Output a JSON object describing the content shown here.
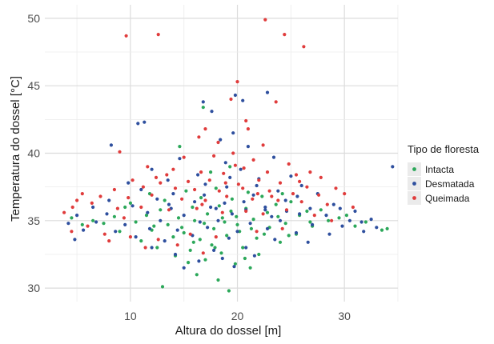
{
  "chart_data": {
    "type": "scatter",
    "xlabel": "Altura do dossel [m]",
    "ylabel": "Temperatura do dossel [°C]",
    "xlim": [
      2,
      35
    ],
    "ylim": [
      29,
      51
    ],
    "x_ticks": [
      10,
      20,
      30
    ],
    "y_ticks": [
      30,
      35,
      40,
      45,
      50
    ],
    "x_tick_labels": [
      "10",
      "20",
      "30"
    ],
    "y_tick_labels": [
      "30",
      "35",
      "40",
      "45",
      "50"
    ],
    "grid": true,
    "legend": {
      "title": "Tipo de floresta",
      "position": "right"
    },
    "series": [
      {
        "name": "Intacta",
        "color": "#2ca85a",
        "points": [
          [
            16.8,
            43.4
          ],
          [
            14.6,
            40.5
          ],
          [
            19.3,
            39.0
          ],
          [
            17.5,
            38.6
          ],
          [
            13.0,
            30.1
          ],
          [
            19.2,
            29.8
          ],
          [
            18.2,
            30.6
          ],
          [
            16.2,
            31.0
          ],
          [
            15.4,
            31.9
          ],
          [
            21.2,
            31.5
          ],
          [
            14.2,
            32.4
          ],
          [
            17.0,
            32.1
          ],
          [
            19.8,
            31.8
          ],
          [
            22.0,
            32.5
          ],
          [
            12.5,
            33.0
          ],
          [
            15.6,
            32.8
          ],
          [
            18.5,
            32.6
          ],
          [
            20.5,
            33.0
          ],
          [
            24.0,
            33.4
          ],
          [
            11.0,
            33.5
          ],
          [
            14.0,
            33.8
          ],
          [
            16.5,
            33.6
          ],
          [
            19.0,
            33.9
          ],
          [
            21.8,
            33.7
          ],
          [
            25.5,
            34.0
          ],
          [
            9.0,
            34.2
          ],
          [
            12.0,
            34.3
          ],
          [
            15.0,
            34.1
          ],
          [
            17.8,
            34.4
          ],
          [
            20.2,
            34.2
          ],
          [
            23.0,
            34.5
          ],
          [
            27.0,
            34.6
          ],
          [
            7.5,
            34.8
          ],
          [
            10.5,
            34.9
          ],
          [
            13.5,
            34.7
          ],
          [
            16.0,
            35.0
          ],
          [
            18.8,
            34.9
          ],
          [
            21.5,
            35.1
          ],
          [
            24.5,
            34.8
          ],
          [
            28.5,
            35.0
          ],
          [
            31.0,
            34.6
          ],
          [
            33.5,
            34.3
          ],
          [
            8.5,
            35.3
          ],
          [
            11.5,
            35.4
          ],
          [
            14.5,
            35.2
          ],
          [
            17.2,
            35.5
          ],
          [
            19.9,
            35.3
          ],
          [
            22.8,
            35.6
          ],
          [
            25.8,
            35.4
          ],
          [
            29.5,
            35.2
          ],
          [
            6.5,
            35.0
          ],
          [
            12.8,
            35.8
          ],
          [
            15.8,
            36.0
          ],
          [
            18.3,
            36.1
          ],
          [
            20.8,
            35.9
          ],
          [
            23.6,
            36.2
          ],
          [
            26.5,
            35.7
          ],
          [
            10.0,
            36.3
          ],
          [
            13.2,
            36.5
          ],
          [
            16.6,
            36.7
          ],
          [
            19.5,
            36.6
          ],
          [
            22.3,
            36.8
          ],
          [
            25.0,
            36.4
          ],
          [
            11.8,
            37.0
          ],
          [
            15.2,
            37.2
          ],
          [
            18.0,
            37.4
          ],
          [
            21.0,
            37.1
          ],
          [
            24.2,
            37.0
          ],
          [
            9.5,
            36.0
          ],
          [
            17.6,
            33.2
          ],
          [
            20.0,
            34.7
          ],
          [
            22.5,
            34.0
          ],
          [
            14.8,
            34.5
          ],
          [
            19.4,
            35.7
          ],
          [
            16.9,
            34.8
          ],
          [
            21.3,
            34.4
          ],
          [
            18.6,
            35.2
          ],
          [
            23.8,
            35.3
          ],
          [
            26.8,
            34.9
          ],
          [
            12.2,
            34.6
          ],
          [
            34.0,
            34.4
          ],
          [
            32.0,
            34.9
          ],
          [
            30.2,
            35.4
          ],
          [
            5.5,
            34.7
          ],
          [
            4.5,
            35.2
          ],
          [
            27.8,
            35.8
          ],
          [
            24.8,
            33.9
          ],
          [
            17.9,
            33.0
          ],
          [
            20.7,
            32.2
          ],
          [
            15.9,
            33.4
          ]
        ]
      },
      {
        "name": "Desmatada",
        "color": "#2e4f9e",
        "points": [
          [
            34.5,
            39.0
          ],
          [
            19.8,
            44.3
          ],
          [
            22.8,
            44.5
          ],
          [
            16.8,
            43.8
          ],
          [
            17.6,
            43.1
          ],
          [
            20.5,
            43.9
          ],
          [
            11.3,
            42.3
          ],
          [
            10.7,
            42.2
          ],
          [
            19.6,
            41.5
          ],
          [
            18.4,
            41.0
          ],
          [
            8.2,
            40.6
          ],
          [
            21.0,
            40.5
          ],
          [
            14.6,
            39.6
          ],
          [
            18.9,
            39.3
          ],
          [
            23.4,
            39.7
          ],
          [
            12.0,
            38.8
          ],
          [
            16.3,
            38.4
          ],
          [
            20.3,
            38.8
          ],
          [
            25.0,
            38.3
          ],
          [
            13.5,
            38.0
          ],
          [
            22.0,
            38.1
          ],
          [
            9.8,
            37.8
          ],
          [
            17.0,
            37.7
          ],
          [
            26.0,
            37.6
          ],
          [
            11.0,
            37.3
          ],
          [
            19.0,
            37.5
          ],
          [
            23.8,
            37.2
          ],
          [
            14.0,
            37.0
          ],
          [
            21.5,
            36.9
          ],
          [
            27.5,
            37.0
          ],
          [
            8.0,
            36.5
          ],
          [
            12.5,
            36.6
          ],
          [
            16.0,
            36.4
          ],
          [
            18.8,
            36.3
          ],
          [
            24.5,
            36.5
          ],
          [
            29.0,
            36.2
          ],
          [
            6.5,
            36.0
          ],
          [
            10.2,
            36.1
          ],
          [
            13.8,
            35.9
          ],
          [
            17.5,
            36.0
          ],
          [
            20.8,
            35.8
          ],
          [
            22.6,
            36.0
          ],
          [
            26.8,
            35.9
          ],
          [
            31.0,
            35.7
          ],
          [
            5.0,
            35.4
          ],
          [
            7.8,
            35.5
          ],
          [
            11.6,
            35.6
          ],
          [
            15.0,
            35.4
          ],
          [
            19.5,
            35.5
          ],
          [
            23.2,
            35.3
          ],
          [
            25.8,
            35.5
          ],
          [
            28.3,
            35.4
          ],
          [
            30.5,
            35.0
          ],
          [
            32.5,
            35.1
          ],
          [
            4.2,
            34.8
          ],
          [
            6.8,
            34.9
          ],
          [
            9.5,
            34.7
          ],
          [
            12.8,
            35.0
          ],
          [
            16.5,
            34.9
          ],
          [
            18.2,
            35.0
          ],
          [
            21.2,
            34.8
          ],
          [
            24.0,
            35.0
          ],
          [
            27.0,
            34.7
          ],
          [
            29.8,
            34.6
          ],
          [
            33.0,
            34.5
          ],
          [
            5.6,
            34.3
          ],
          [
            8.6,
            34.2
          ],
          [
            11.8,
            34.4
          ],
          [
            14.4,
            34.3
          ],
          [
            17.2,
            34.5
          ],
          [
            20.0,
            34.2
          ],
          [
            22.8,
            34.4
          ],
          [
            25.5,
            34.1
          ],
          [
            28.6,
            34.0
          ],
          [
            31.8,
            34.2
          ],
          [
            4.8,
            33.6
          ],
          [
            10.5,
            33.8
          ],
          [
            13.2,
            33.5
          ],
          [
            15.8,
            33.9
          ],
          [
            19.2,
            33.7
          ],
          [
            23.5,
            33.6
          ],
          [
            26.6,
            33.4
          ],
          [
            12.0,
            33.0
          ],
          [
            17.8,
            32.8
          ],
          [
            20.8,
            33.0
          ],
          [
            14.2,
            32.5
          ],
          [
            18.6,
            32.2
          ],
          [
            21.6,
            32.4
          ],
          [
            16.4,
            32.0
          ],
          [
            19.7,
            31.6
          ],
          [
            15.0,
            31.5
          ],
          [
            22.6,
            35.8
          ],
          [
            18.0,
            35.9
          ],
          [
            20.6,
            36.4
          ],
          [
            24.6,
            35.7
          ],
          [
            13.6,
            36.2
          ],
          [
            16.9,
            36.9
          ],
          [
            19.3,
            38.2
          ],
          [
            21.8,
            37.6
          ],
          [
            25.6,
            36.8
          ],
          [
            29.6,
            35.9
          ],
          [
            31.6,
            34.9
          ]
        ]
      },
      {
        "name": "Queimada",
        "color": "#e03c3c",
        "points": [
          [
            22.6,
            49.9
          ],
          [
            24.4,
            48.8
          ],
          [
            26.2,
            47.9
          ],
          [
            9.6,
            48.7
          ],
          [
            12.6,
            48.8
          ],
          [
            20.0,
            45.3
          ],
          [
            19.4,
            44.0
          ],
          [
            23.6,
            43.8
          ],
          [
            21.0,
            41.8
          ],
          [
            18.2,
            40.8
          ],
          [
            16.4,
            41.2
          ],
          [
            9.0,
            40.1
          ],
          [
            15.0,
            39.7
          ],
          [
            17.8,
            39.8
          ],
          [
            21.5,
            39.5
          ],
          [
            24.8,
            39.2
          ],
          [
            19.8,
            39.1
          ],
          [
            11.6,
            39.0
          ],
          [
            13.4,
            38.4
          ],
          [
            16.6,
            38.6
          ],
          [
            18.7,
            38.5
          ],
          [
            20.6,
            38.9
          ],
          [
            22.8,
            38.6
          ],
          [
            25.5,
            38.4
          ],
          [
            27.8,
            38.2
          ],
          [
            10.2,
            38.0
          ],
          [
            12.8,
            37.8
          ],
          [
            15.4,
            37.9
          ],
          [
            17.4,
            38.0
          ],
          [
            20.1,
            37.7
          ],
          [
            22.0,
            38.0
          ],
          [
            24.0,
            37.8
          ],
          [
            26.5,
            37.5
          ],
          [
            29.2,
            37.4
          ],
          [
            8.5,
            37.3
          ],
          [
            11.2,
            37.5
          ],
          [
            14.2,
            37.4
          ],
          [
            16.0,
            37.3
          ],
          [
            18.3,
            37.2
          ],
          [
            20.5,
            37.4
          ],
          [
            23.0,
            37.2
          ],
          [
            25.2,
            37.0
          ],
          [
            27.6,
            36.9
          ],
          [
            30.0,
            37.0
          ],
          [
            5.5,
            37.0
          ],
          [
            7.2,
            36.8
          ],
          [
            9.8,
            36.7
          ],
          [
            12.0,
            36.9
          ],
          [
            14.8,
            36.6
          ],
          [
            17.0,
            36.5
          ],
          [
            19.0,
            36.8
          ],
          [
            21.4,
            36.6
          ],
          [
            23.8,
            36.5
          ],
          [
            26.0,
            36.4
          ],
          [
            28.4,
            36.2
          ],
          [
            4.6,
            36.0
          ],
          [
            6.4,
            36.3
          ],
          [
            8.8,
            35.9
          ],
          [
            11.0,
            36.0
          ],
          [
            13.6,
            35.8
          ],
          [
            16.2,
            35.9
          ],
          [
            18.6,
            35.6
          ],
          [
            20.8,
            35.7
          ],
          [
            22.4,
            35.5
          ],
          [
            24.6,
            35.8
          ],
          [
            27.2,
            35.4
          ],
          [
            3.8,
            35.6
          ],
          [
            4.5,
            34.2
          ],
          [
            7.6,
            34.0
          ],
          [
            10.0,
            33.8
          ],
          [
            12.6,
            33.6
          ],
          [
            15.6,
            34.0
          ],
          [
            18.0,
            33.8
          ],
          [
            21.8,
            34.2
          ],
          [
            24.2,
            34.4
          ],
          [
            8.0,
            33.5
          ],
          [
            11.4,
            33.0
          ],
          [
            14.4,
            33.2
          ],
          [
            16.8,
            32.6
          ],
          [
            6.0,
            34.6
          ],
          [
            9.4,
            35.2
          ],
          [
            28.8,
            35.0
          ],
          [
            30.8,
            36.0
          ],
          [
            5.0,
            36.5
          ],
          [
            19.6,
            40.0
          ],
          [
            22.4,
            40.6
          ],
          [
            17.0,
            41.8
          ],
          [
            20.8,
            42.4
          ],
          [
            14.0,
            38.8
          ],
          [
            26.8,
            38.6
          ],
          [
            23.2,
            36.8
          ],
          [
            18.9,
            37.8
          ],
          [
            16.7,
            36.2
          ],
          [
            21.9,
            37.0
          ],
          [
            25.8,
            37.9
          ],
          [
            12.4,
            38.2
          ]
        ]
      }
    ]
  }
}
